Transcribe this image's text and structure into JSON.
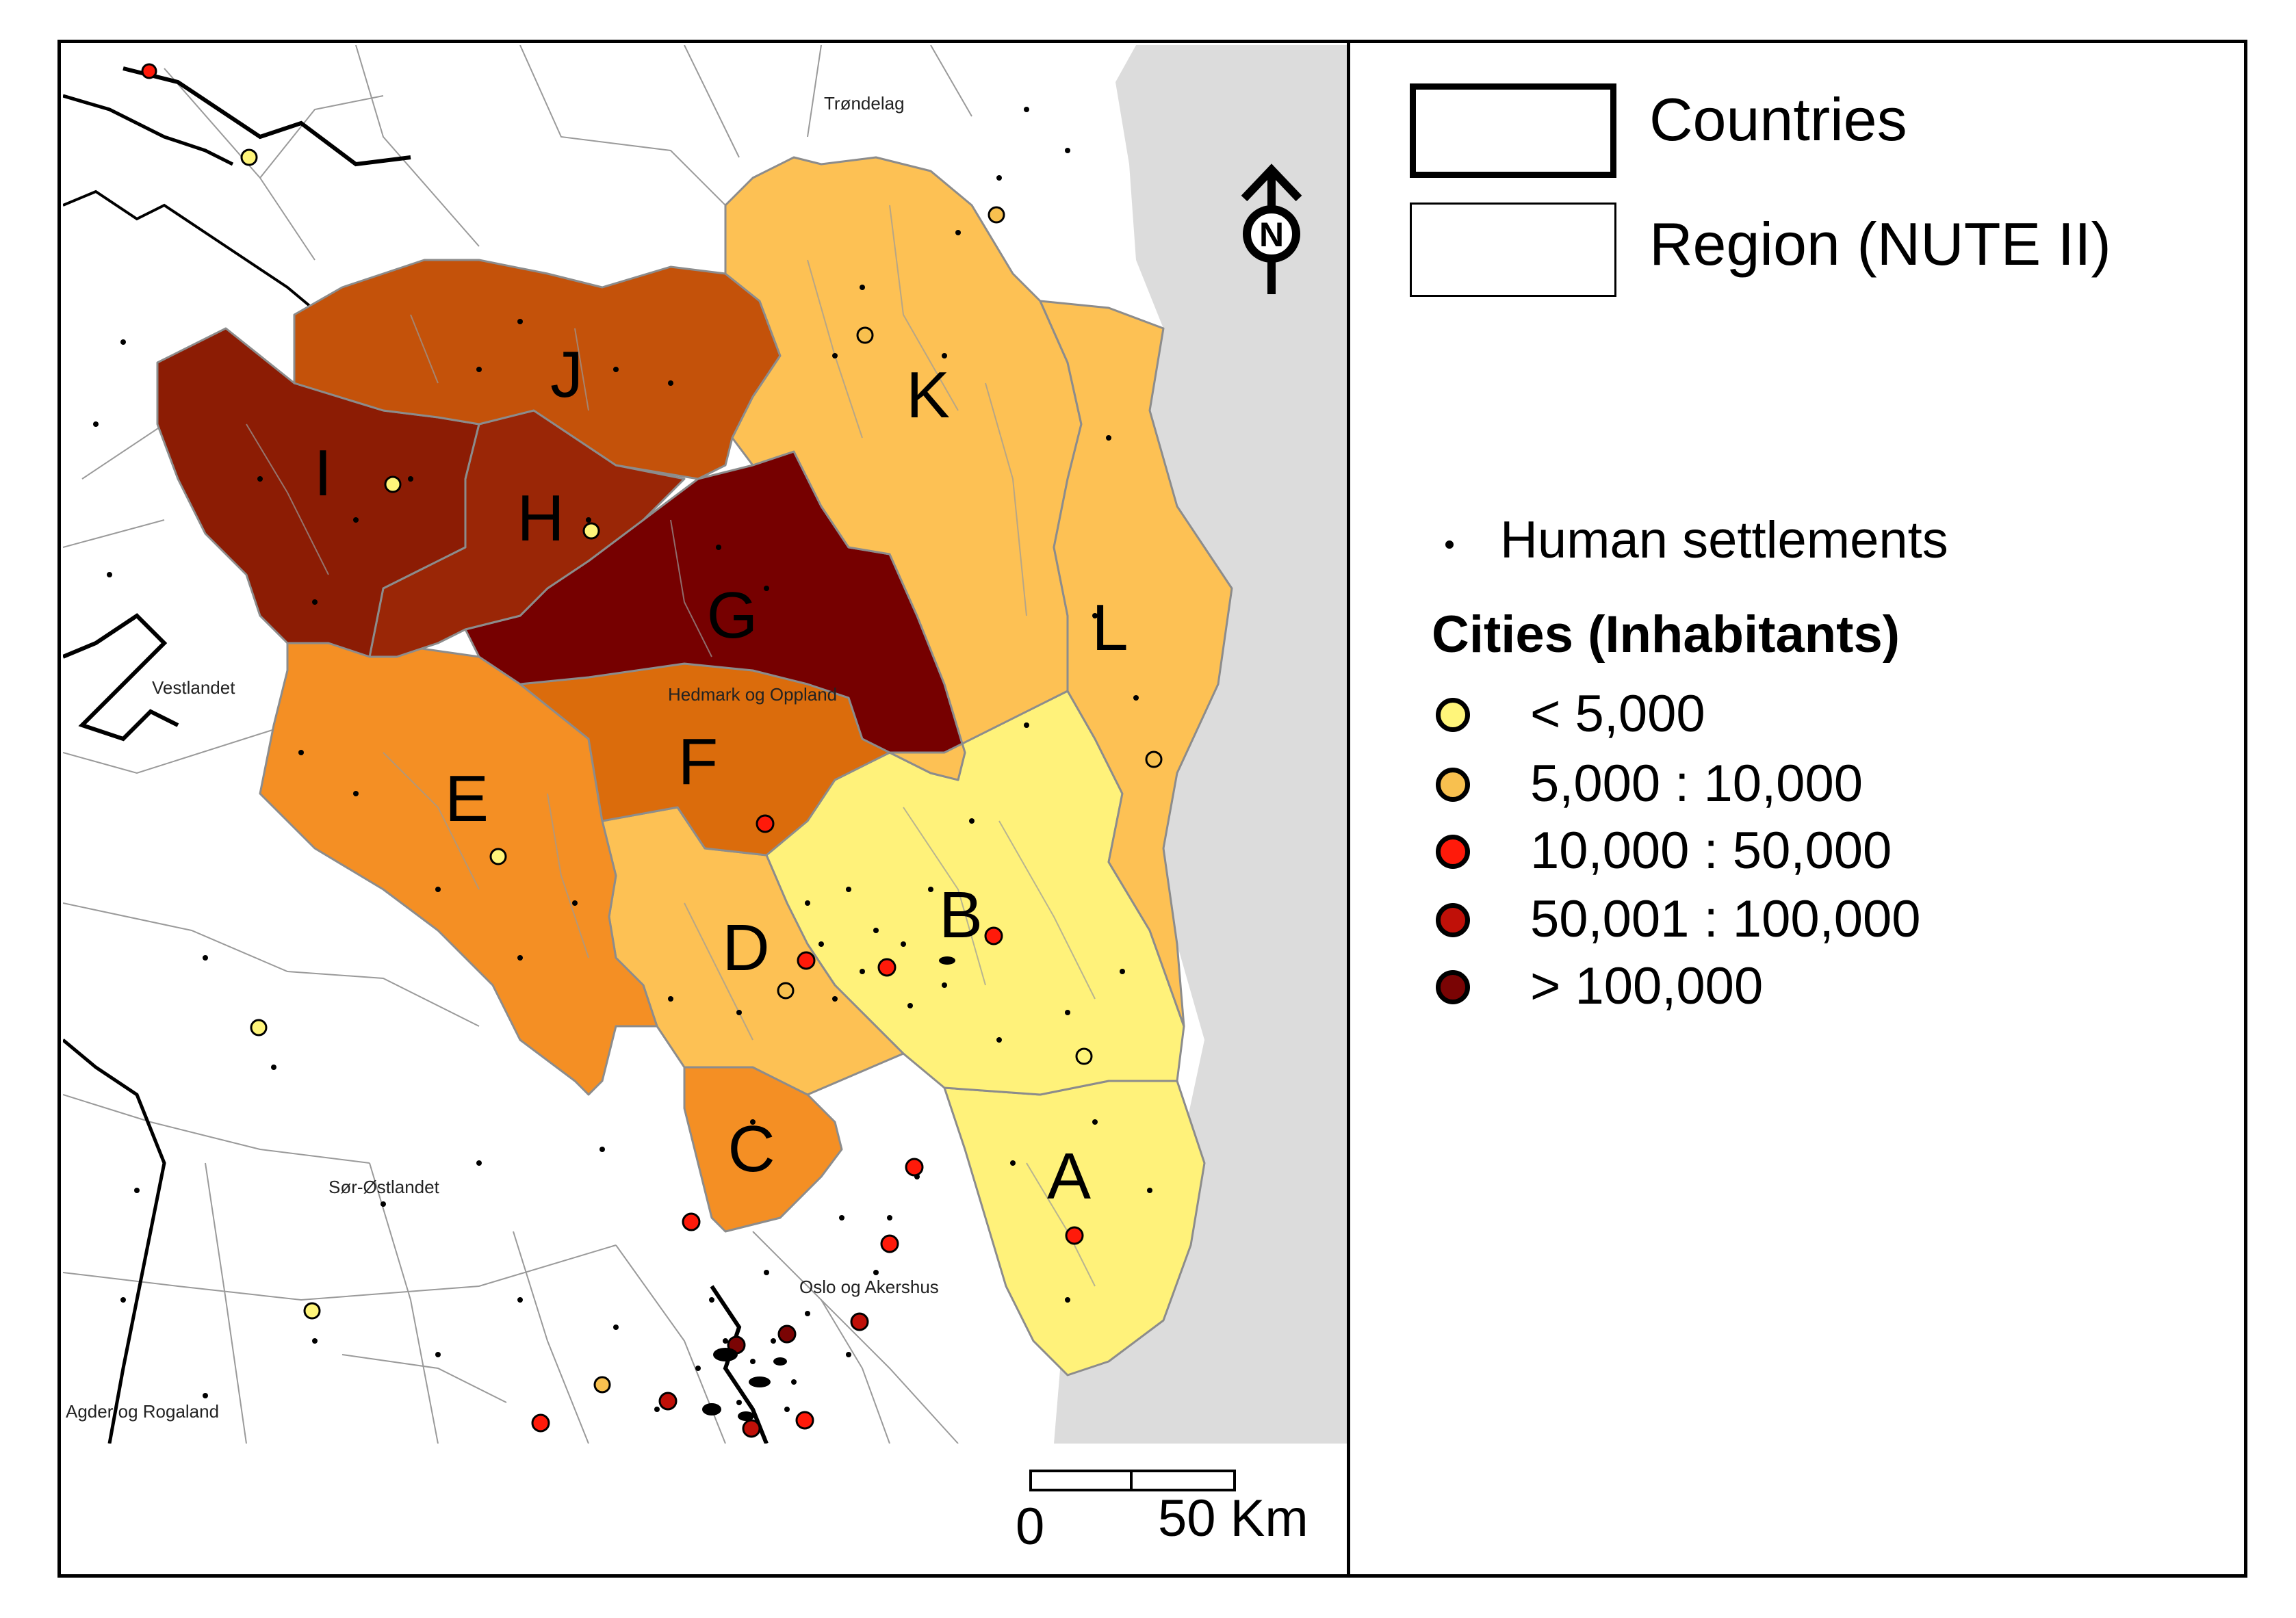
{
  "map": {
    "region_letters": [
      "A",
      "B",
      "C",
      "D",
      "E",
      "F",
      "G",
      "H",
      "I",
      "J",
      "K",
      "L"
    ],
    "place_labels": {
      "trondelag": "Trøndelag",
      "vestlandet": "Vestlandet",
      "hedmark": "Hedmark og Oppland",
      "sor_ostlandet": "Sør-Østlandet",
      "oslo": "Oslo og Akershus",
      "agder": "Agder og Rogaland"
    },
    "north_arrow": {
      "icon": "north-arrow-icon",
      "letter": "N"
    },
    "scale_bar": {
      "start_label": "0",
      "end_label": "50 Km"
    },
    "colors": {
      "sea": "#dcdcdc",
      "class_1": "#fff27a",
      "class_2": "#fdc154",
      "class_3": "#f48f24",
      "class_4": "#db6c0c",
      "class_5": "#c4520a",
      "class_6": "#8c1c04",
      "class_7": "#760000"
    }
  },
  "legend": {
    "countries_label": "Countries",
    "region_label": "Region (NUTE II)",
    "settlements_label": "Human settlements",
    "cities_title": "Cities (Inhabitants)",
    "cities": [
      {
        "label": "< 5,000",
        "color": "#fff57a"
      },
      {
        "label": "5,000 : 10,000",
        "color": "#f8c04f"
      },
      {
        "label": "10,000 : 50,000",
        "color": "#ff1a0a"
      },
      {
        "label": "50,001 : 100,000",
        "color": "#c01008"
      },
      {
        "label": "> 100,000",
        "color": "#7a0404"
      }
    ]
  }
}
